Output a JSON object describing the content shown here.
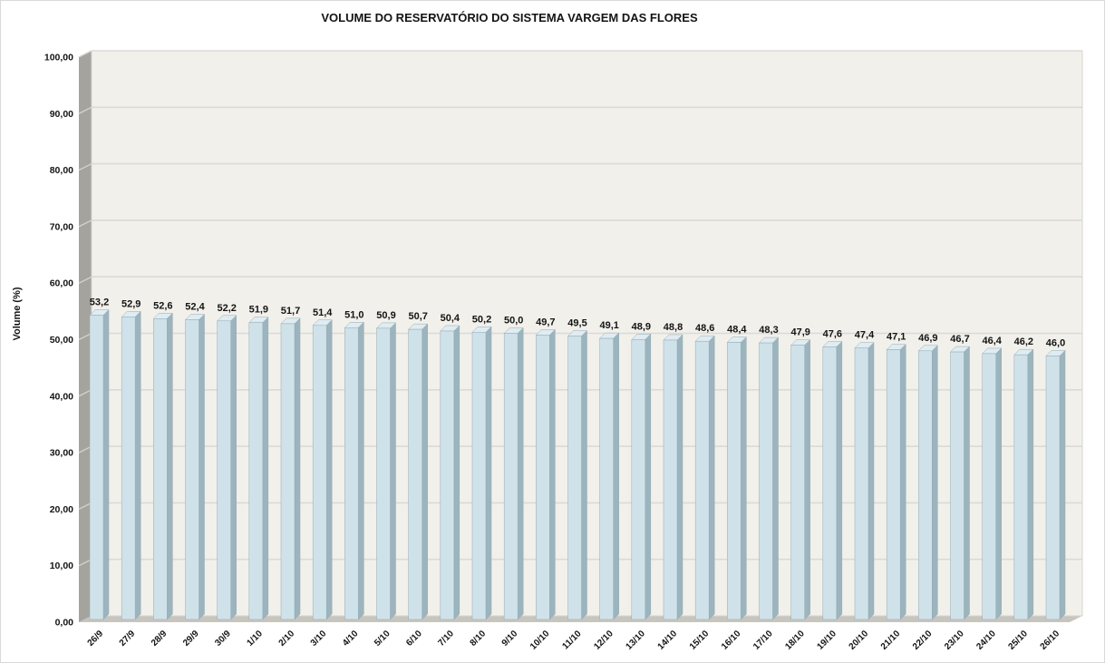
{
  "chart_data": {
    "type": "bar",
    "style": "3d-column",
    "title": "VOLUME DO RESERVATÓRIO DO SISTEMA VARGEM DAS FLORES",
    "xlabel": "",
    "ylabel": "Volume (%)",
    "ylim": [
      0,
      100
    ],
    "y_step": 10,
    "grid": "horizontal",
    "legend": "none",
    "y_ticks": [
      "0,00",
      "10,00",
      "20,00",
      "30,00",
      "40,00",
      "50,00",
      "60,00",
      "70,00",
      "80,00",
      "90,00",
      "100,00"
    ],
    "categories": [
      "26/9",
      "27/9",
      "28/9",
      "29/9",
      "30/9",
      "1/10",
      "2/10",
      "3/10",
      "4/10",
      "5/10",
      "6/10",
      "7/10",
      "8/10",
      "9/10",
      "10/10",
      "11/10",
      "12/10",
      "13/10",
      "14/10",
      "15/10",
      "16/10",
      "17/10",
      "18/10",
      "19/10",
      "20/10",
      "21/10",
      "22/10",
      "23/10",
      "24/10",
      "25/10",
      "26/10"
    ],
    "values": [
      53.2,
      52.9,
      52.6,
      52.4,
      52.2,
      51.9,
      51.7,
      51.4,
      51.0,
      50.9,
      50.7,
      50.4,
      50.2,
      50.0,
      49.7,
      49.5,
      49.1,
      48.9,
      48.8,
      48.6,
      48.4,
      48.3,
      47.9,
      47.6,
      47.4,
      47.1,
      46.9,
      46.7,
      46.4,
      46.2,
      46.0
    ],
    "value_labels": [
      "53,2",
      "52,9",
      "52,6",
      "52,4",
      "52,2",
      "51,9",
      "51,7",
      "51,4",
      "51,0",
      "50,9",
      "50,7",
      "50,4",
      "50,2",
      "50,0",
      "49,7",
      "49,5",
      "49,1",
      "48,9",
      "48,8",
      "48,6",
      "48,4",
      "48,3",
      "47,9",
      "47,6",
      "47,4",
      "47,1",
      "46,9",
      "46,7",
      "46,4",
      "46,2",
      "46,0"
    ],
    "colors": {
      "bar_front": "#cfe2ea",
      "bar_side": "#9cb4be",
      "bar_top": "#dfecf1",
      "bar_stroke": "#93aab4",
      "plot_bg": "#f2f0eb",
      "plot_border": "#d8d6d0",
      "wall": "#a5a39d",
      "wall_gridline": "#d2d0ca",
      "floor": "#c7c5bd",
      "gridline": "#dcdad5",
      "text": "#141414",
      "frame_border": "#d9d9d9"
    }
  }
}
